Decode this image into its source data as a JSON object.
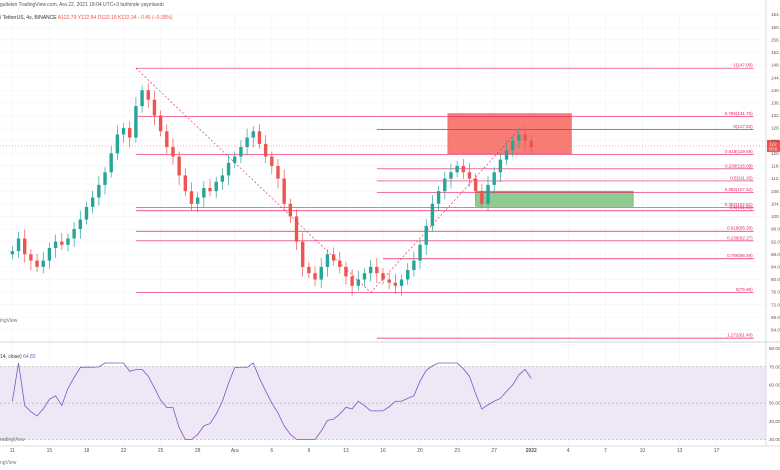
{
  "header": {
    "snapshot_text": "gultekin TradingView.com, Ara 22, 2021 18:04 UTC+3 tarihinde yayınlandı"
  },
  "symbol": {
    "name": "/ TetherUS, 4s, BINANCE",
    "open": "A122.79",
    "high": "Y122.84",
    "low": "D122.18",
    "close": "K122.34",
    "change": "−0.45 (−0.35%)"
  },
  "rsi": {
    "label": "14, close)",
    "value": "64.83",
    "upper": 70,
    "mid": 50,
    "lower": 30
  },
  "watermarks": [
    "ingView",
    "radingView",
    "ngView"
  ],
  "colors": {
    "up": "#26a69a",
    "down": "#ef5350",
    "fib": "#e91e63",
    "rsi": "#7e57c2",
    "red_zone": "#f77d74",
    "green_zone": "#8dcb8e"
  },
  "fib_levels": [
    {
      "label": "1(147.00)",
      "value": 147.0
    },
    {
      "label": "0.786(131.70)",
      "value": 131.7
    },
    {
      "label": "0(127.52)",
      "value": 127.52
    },
    {
      "label": "0.618(119.69)",
      "value": 119.69
    },
    {
      "label": "0.236(115.09)",
      "value": 115.09
    },
    {
      "label": "0.5(111.25)",
      "value": 111.25
    },
    {
      "label": "0.382(107.52)",
      "value": 107.52
    },
    {
      "label": "0.382(102.81)",
      "value": 102.81
    },
    {
      "label": "0.5(101.81)",
      "value": 101.81
    },
    {
      "label": "0.618(95.30)",
      "value": 95.3
    },
    {
      "label": "0.236(92.27)",
      "value": 92.27
    },
    {
      "label": "0.786(86.59)",
      "value": 86.59
    },
    {
      "label": "0(75.90)",
      "value": 75.9
    },
    {
      "label": "1.272(61.40)",
      "value": 61.4
    }
  ],
  "chart_data": {
    "type": "candlestick",
    "price_axis_ticks": [
      "164.0",
      "160.0",
      "156.0",
      "152.0",
      "148.0",
      "144.0",
      "140.0",
      "136.0",
      "132.0",
      "128.0",
      "124.0",
      "120.0",
      "116.0",
      "112.0",
      "108.0",
      "104.0",
      "100.0",
      "96.0",
      "92.0",
      "88.0",
      "84.0",
      "80.0",
      "76.0",
      "72.0",
      "68.0",
      "64.0"
    ],
    "price_axis_values": [
      164,
      160,
      156,
      152,
      148,
      144,
      140,
      136,
      132,
      128,
      124,
      120,
      116,
      112,
      108,
      104,
      100,
      96,
      92,
      88,
      84,
      80,
      76,
      72,
      68,
      64
    ],
    "price_ylim": [
      60.5,
      164.5
    ],
    "current_price": {
      "label": "122.",
      "sub": "03:5",
      "value": 122.34
    },
    "rsi_axis_ticks": [
      "80.00",
      "70.00",
      "60.00",
      "50.00",
      "40.00",
      "30.00"
    ],
    "rsi_axis_values": [
      80,
      70,
      60,
      50,
      40,
      30
    ],
    "rsi_ylim": [
      27,
      83
    ],
    "x_tick_labels": [
      "11",
      "15",
      "18",
      "22",
      "25",
      "28",
      "Ara",
      "6",
      "9",
      "13",
      "16",
      "20",
      "23",
      "27",
      "2022",
      "4",
      "7",
      "10",
      "13",
      "17"
    ],
    "x_tick_positions": [
      0,
      6,
      12,
      18,
      24,
      30,
      36,
      42,
      48,
      54,
      60,
      66,
      72,
      78,
      84,
      90,
      96,
      102,
      108,
      114
    ],
    "x_range": [
      -2,
      122
    ],
    "close_series": [
      89,
      93,
      88,
      86,
      84,
      86,
      90,
      92,
      91,
      93,
      96,
      99,
      103,
      106,
      110,
      114,
      120,
      126,
      128,
      125,
      135,
      140,
      137,
      132,
      127,
      122,
      119,
      113,
      108,
      104,
      106,
      109,
      108,
      111,
      113,
      117,
      119,
      122,
      125,
      127,
      123,
      119,
      116,
      112,
      104,
      100,
      92,
      84,
      82,
      80,
      84,
      88,
      86,
      84,
      81,
      78,
      80,
      82,
      84,
      82,
      80,
      79,
      78,
      80,
      83,
      86,
      91,
      97,
      104,
      108,
      112,
      114,
      116,
      114,
      112,
      108,
      104,
      110,
      114,
      118,
      121,
      124,
      126,
      124,
      122
    ],
    "zones": [
      {
        "name": "red",
        "x": [
          70.5,
          90.5
        ],
        "y": [
          119.9,
          132.6
        ]
      },
      {
        "name": "green",
        "x": [
          75.0,
          100.5
        ],
        "y": [
          103.2,
          108.0
        ]
      }
    ]
  }
}
